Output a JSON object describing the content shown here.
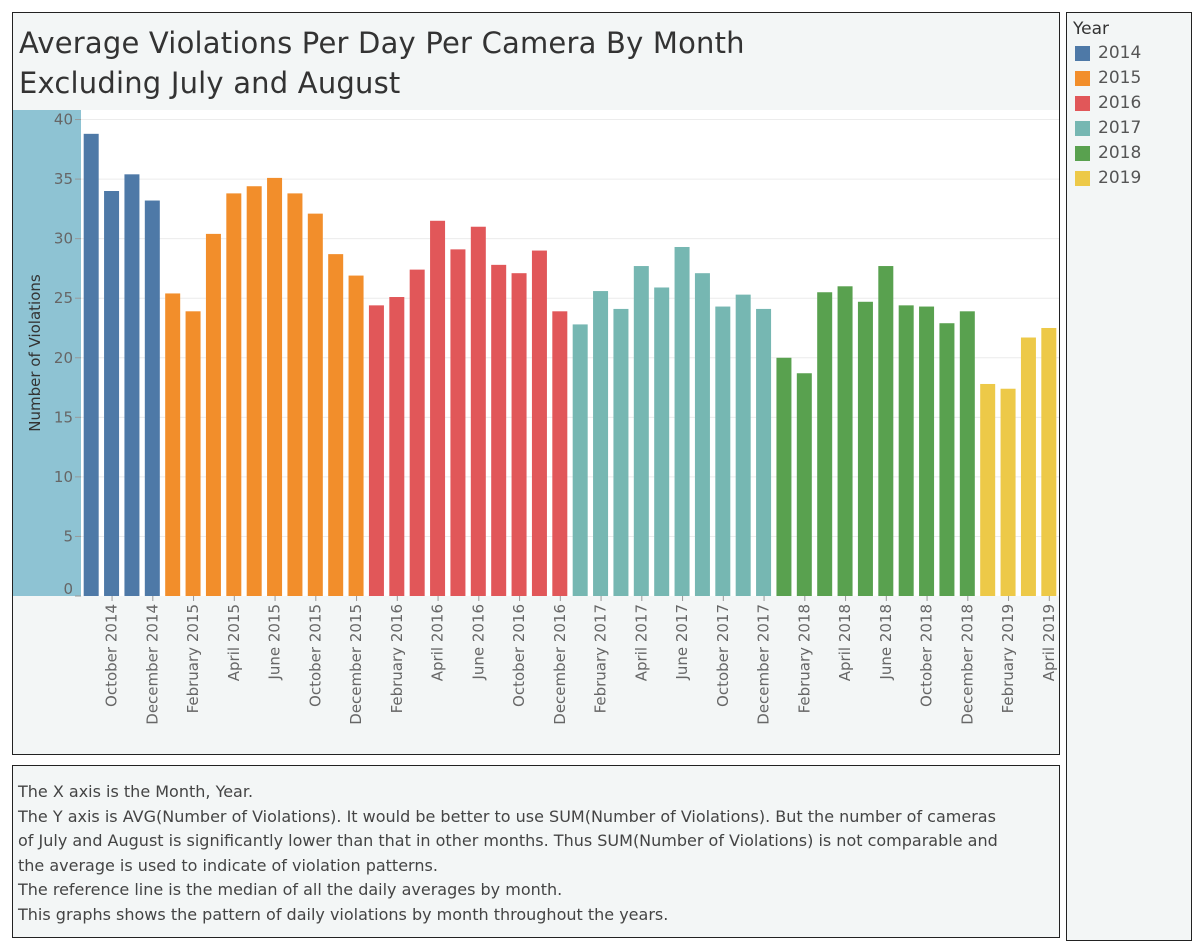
{
  "chart_data": {
    "type": "bar",
    "title": "Average Violations Per Day Per Camera By Month Excluding July and August",
    "title_lines": [
      "Average Violations Per Day Per Camera By Month",
      "Excluding July and August"
    ],
    "ylabel": "Number of Violations",
    "ylim": [
      0,
      40
    ],
    "yticks": [
      0,
      5,
      10,
      15,
      20,
      25,
      30,
      35,
      40
    ],
    "grid": true,
    "legend_title": "Year",
    "legend_placement": "right",
    "colors": {
      "2014": "#4e79a7",
      "2015": "#f28e2b",
      "2016": "#e15759",
      "2017": "#76b7b2",
      "2018": "#59a14f",
      "2019": "#edc948"
    },
    "months": [
      {
        "label": "September 2014",
        "year": "2014",
        "value": 38.8
      },
      {
        "label": "October 2014",
        "year": "2014",
        "value": 34.0
      },
      {
        "label": "November 2014",
        "year": "2014",
        "value": 35.4
      },
      {
        "label": "December 2014",
        "year": "2014",
        "value": 33.2
      },
      {
        "label": "January 2015",
        "year": "2015",
        "value": 25.4
      },
      {
        "label": "February 2015",
        "year": "2015",
        "value": 23.9
      },
      {
        "label": "March 2015",
        "year": "2015",
        "value": 30.4
      },
      {
        "label": "April 2015",
        "year": "2015",
        "value": 33.8
      },
      {
        "label": "May 2015",
        "year": "2015",
        "value": 34.4
      },
      {
        "label": "June 2015",
        "year": "2015",
        "value": 35.1
      },
      {
        "label": "September 2015",
        "year": "2015",
        "value": 33.8
      },
      {
        "label": "October 2015",
        "year": "2015",
        "value": 32.1
      },
      {
        "label": "November 2015",
        "year": "2015",
        "value": 28.7
      },
      {
        "label": "December 2015",
        "year": "2015",
        "value": 26.9
      },
      {
        "label": "January 2016",
        "year": "2016",
        "value": 24.4
      },
      {
        "label": "February 2016",
        "year": "2016",
        "value": 25.1
      },
      {
        "label": "March 2016",
        "year": "2016",
        "value": 27.4
      },
      {
        "label": "April 2016",
        "year": "2016",
        "value": 31.5
      },
      {
        "label": "May 2016",
        "year": "2016",
        "value": 29.1
      },
      {
        "label": "June 2016",
        "year": "2016",
        "value": 31.0
      },
      {
        "label": "September 2016",
        "year": "2016",
        "value": 27.8
      },
      {
        "label": "October 2016",
        "year": "2016",
        "value": 27.1
      },
      {
        "label": "November 2016",
        "year": "2016",
        "value": 29.0
      },
      {
        "label": "December 2016",
        "year": "2016",
        "value": 23.9
      },
      {
        "label": "January 2017",
        "year": "2017",
        "value": 22.8
      },
      {
        "label": "February 2017",
        "year": "2017",
        "value": 25.6
      },
      {
        "label": "March 2017",
        "year": "2017",
        "value": 24.1
      },
      {
        "label": "April 2017",
        "year": "2017",
        "value": 27.7
      },
      {
        "label": "May 2017",
        "year": "2017",
        "value": 25.9
      },
      {
        "label": "June 2017",
        "year": "2017",
        "value": 29.3
      },
      {
        "label": "September 2017",
        "year": "2017",
        "value": 27.1
      },
      {
        "label": "October 2017",
        "year": "2017",
        "value": 24.3
      },
      {
        "label": "November 2017",
        "year": "2017",
        "value": 25.3
      },
      {
        "label": "December 2017",
        "year": "2017",
        "value": 24.1
      },
      {
        "label": "January 2018",
        "year": "2018",
        "value": 20.0
      },
      {
        "label": "February 2018",
        "year": "2018",
        "value": 18.7
      },
      {
        "label": "March 2018",
        "year": "2018",
        "value": 25.5
      },
      {
        "label": "April 2018",
        "year": "2018",
        "value": 26.0
      },
      {
        "label": "May 2018",
        "year": "2018",
        "value": 24.7
      },
      {
        "label": "June 2018",
        "year": "2018",
        "value": 27.7
      },
      {
        "label": "September 2018",
        "year": "2018",
        "value": 24.4
      },
      {
        "label": "October 2018",
        "year": "2018",
        "value": 24.3
      },
      {
        "label": "November 2018",
        "year": "2018",
        "value": 22.9
      },
      {
        "label": "December 2018",
        "year": "2018",
        "value": 23.9
      },
      {
        "label": "January 2019",
        "year": "2019",
        "value": 17.8
      },
      {
        "label": "February 2019",
        "year": "2019",
        "value": 17.4
      },
      {
        "label": "March 2019",
        "year": "2019",
        "value": 21.7
      },
      {
        "label": "April 2019",
        "year": "2019",
        "value": 22.5
      }
    ],
    "visible_tick_labels": [
      "October 2014",
      "December 2014",
      "February 2015",
      "April 2015",
      "June 2015",
      "October 2015",
      "December 2015",
      "February 2016",
      "April 2016",
      "June 2016",
      "October 2016",
      "December 2016",
      "February 2017",
      "April 2017",
      "June 2017",
      "October 2017",
      "December 2017",
      "February 2018",
      "April 2018",
      "June 2018",
      "October 2018",
      "December 2018",
      "February 2019",
      "April 2019"
    ]
  },
  "legend": {
    "title": "Year",
    "items": [
      {
        "label": "2014",
        "color": "#4e79a7"
      },
      {
        "label": "2015",
        "color": "#f28e2b"
      },
      {
        "label": "2016",
        "color": "#e15759"
      },
      {
        "label": "2017",
        "color": "#76b7b2"
      },
      {
        "label": "2018",
        "color": "#59a14f"
      },
      {
        "label": "2019",
        "color": "#edc948"
      }
    ]
  },
  "notes": {
    "lines": [
      "The X axis is the Month,  Year.",
      "The Y axis is AVG(Number of Violations). It would be better to use SUM(Number of Violations). But the number of cameras",
      "of July and August is significantly lower than that in other months. Thus SUM(Number of Violations) is not comparable and",
      "the average is used to indicate of violation patterns.",
      "The reference line is the median of all the daily averages by month.",
      "This graphs shows the pattern of daily violations by month throughout the years."
    ]
  }
}
